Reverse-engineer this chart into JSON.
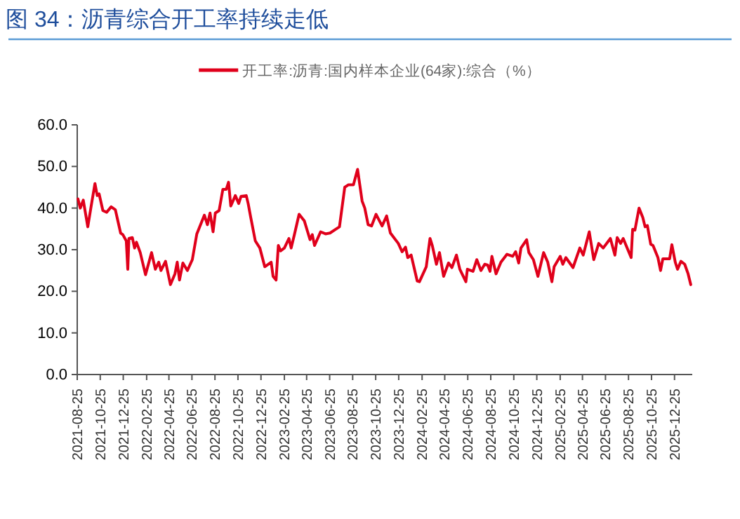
{
  "chart_data": {
    "type": "line",
    "title": "图 34：沥青综合开工率持续走低",
    "legend": "top",
    "ylim": [
      0,
      60
    ],
    "yticks": [
      {
        "value": 0,
        "label": "0.0"
      },
      {
        "value": 10,
        "label": "10.0"
      },
      {
        "value": 20,
        "label": "20.0"
      },
      {
        "value": 30,
        "label": "30.0"
      },
      {
        "value": 40,
        "label": "40.0"
      },
      {
        "value": 50,
        "label": "50.0"
      },
      {
        "value": 60,
        "label": "60.0"
      }
    ],
    "xlim": [
      "2021-08-25",
      "2026-02-10"
    ],
    "xticks": [
      "2021-08-25",
      "2021-10-25",
      "2021-12-25",
      "2022-02-25",
      "2022-04-25",
      "2022-06-25",
      "2022-08-25",
      "2022-10-25",
      "2022-12-25",
      "2023-02-25",
      "2023-04-25",
      "2023-06-25",
      "2023-08-25",
      "2023-10-25",
      "2023-12-25",
      "2024-02-25",
      "2024-04-25",
      "2024-06-25",
      "2024-08-25",
      "2024-10-25",
      "2024-12-25",
      "2025-02-25",
      "2025-04-25",
      "2025-06-25",
      "2025-08-25",
      "2025-10-25",
      "2025-12-25"
    ],
    "x": [
      "2021-08-27",
      "2021-09-02",
      "2021-09-10",
      "2021-09-22",
      "2021-10-01",
      "2021-10-11",
      "2021-10-17",
      "2021-10-22",
      "2021-11-01",
      "2021-11-11",
      "2021-11-23",
      "2021-12-04",
      "2021-12-18",
      "2021-12-24",
      "2022-01-02",
      "2022-01-06",
      "2022-01-09",
      "2022-01-18",
      "2022-01-24",
      "2022-01-29",
      "2022-02-08",
      "2022-02-22",
      "2022-03-10",
      "2022-03-20",
      "2022-03-29",
      "2022-04-04",
      "2022-04-16",
      "2022-04-29",
      "2022-05-11",
      "2022-05-17",
      "2022-05-23",
      "2022-06-01",
      "2022-06-13",
      "2022-06-26",
      "2022-07-08",
      "2022-07-28",
      "2022-08-05",
      "2022-08-12",
      "2022-08-20",
      "2022-08-26",
      "2022-09-05",
      "2022-09-15",
      "2022-09-24",
      "2022-09-30",
      "2022-10-06",
      "2022-10-18",
      "2022-10-27",
      "2022-11-02",
      "2022-11-16",
      "2022-11-21",
      "2022-11-28",
      "2022-12-10",
      "2022-12-22",
      "2023-01-04",
      "2023-01-21",
      "2023-01-26",
      "2023-02-03",
      "2023-02-09",
      "2023-02-15",
      "2023-02-25",
      "2023-03-09",
      "2023-03-15",
      "2023-03-24",
      "2023-04-05",
      "2023-04-19",
      "2023-05-04",
      "2023-05-10",
      "2023-05-16",
      "2023-06-01",
      "2023-06-14",
      "2023-06-26",
      "2023-07-11",
      "2023-07-21",
      "2023-08-04",
      "2023-08-14",
      "2023-08-27",
      "2023-09-07",
      "2023-09-19",
      "2023-09-26",
      "2023-10-05",
      "2023-10-14",
      "2023-10-26",
      "2023-11-11",
      "2023-11-23",
      "2023-12-03",
      "2023-12-24",
      "2024-01-03",
      "2024-01-12",
      "2024-01-18",
      "2024-01-27",
      "2024-02-12",
      "2024-02-18",
      "2024-03-07",
      "2024-03-17",
      "2024-03-23",
      "2024-04-03",
      "2024-04-11",
      "2024-04-22",
      "2024-05-05",
      "2024-05-14",
      "2024-05-26",
      "2024-06-04",
      "2024-06-20",
      "2024-06-24",
      "2024-07-09",
      "2024-07-19",
      "2024-07-30",
      "2024-08-09",
      "2024-08-17",
      "2024-08-23",
      "2024-08-28",
      "2024-09-08",
      "2024-09-21",
      "2024-10-07",
      "2024-10-22",
      "2024-10-30",
      "2024-11-07",
      "2024-11-13",
      "2024-11-28",
      "2024-12-04",
      "2024-12-16",
      "2024-12-28",
      "2025-01-12",
      "2025-01-23",
      "2025-02-03",
      "2025-02-09",
      "2025-02-25",
      "2025-03-04",
      "2025-03-12",
      "2025-03-31",
      "2025-04-18",
      "2025-04-27",
      "2025-05-13",
      "2025-05-25",
      "2025-06-07",
      "2025-06-19",
      "2025-07-08",
      "2025-07-20",
      "2025-07-26",
      "2025-08-04",
      "2025-08-11",
      "2025-09-01",
      "2025-09-05",
      "2025-09-11",
      "2025-09-22",
      "2025-10-02",
      "2025-10-08",
      "2025-10-14",
      "2025-10-23",
      "2025-10-29",
      "2025-11-11",
      "2025-11-18",
      "2025-11-24",
      "2025-12-12",
      "2025-12-18",
      "2025-12-27",
      "2026-01-02",
      "2026-01-11",
      "2026-01-21",
      "2026-01-30",
      "2026-02-06"
    ],
    "series": [
      {
        "name": "开工率:沥青:国内样本企业(64家):综合（%）",
        "color": "#e0001b",
        "values": [
          42.2,
          40,
          41.9,
          35.5,
          40.5,
          45.9,
          43,
          43.4,
          39.4,
          39,
          40.3,
          39.6,
          34,
          33.6,
          32.1,
          25.3,
          32.7,
          32.9,
          30.4,
          31.8,
          29.3,
          24,
          29.3,
          25.3,
          27,
          25,
          27.2,
          21.6,
          24.2,
          27,
          22.7,
          26.8,
          25,
          27.6,
          33.8,
          38.3,
          36,
          38.8,
          34.3,
          38.8,
          39.4,
          44.5,
          44.5,
          46.2,
          40.5,
          43,
          41.1,
          42.8,
          43,
          41.1,
          37.7,
          32.1,
          30.4,
          25.9,
          27,
          23.6,
          22.7,
          31,
          29.7,
          30.4,
          32.7,
          30.4,
          33.8,
          38.5,
          36.9,
          32.4,
          33.6,
          31,
          34.3,
          33.8,
          34,
          34.9,
          35.5,
          45,
          45.6,
          45.6,
          49.3,
          41.7,
          40,
          36,
          35.7,
          38.5,
          35.7,
          38.1,
          34,
          31.5,
          29.5,
          30.6,
          28.1,
          28.7,
          22.5,
          22.3,
          25.9,
          32.7,
          31,
          26.5,
          29.3,
          23.6,
          26.8,
          25.7,
          28.7,
          25.3,
          22.3,
          25.3,
          24.8,
          27.6,
          25,
          26.5,
          26.3,
          24.8,
          28.4,
          24.2,
          27,
          28.9,
          28.4,
          29.5,
          26.8,
          30.4,
          32.4,
          29.3,
          27.6,
          23.6,
          29.3,
          27,
          22.3,
          25.9,
          28.4,
          26.5,
          28.1,
          25.7,
          30.4,
          28.7,
          34.3,
          27.6,
          31.5,
          30.4,
          32.7,
          28.7,
          32.9,
          31.5,
          32.7,
          28.1,
          34.9,
          34.7,
          40,
          37.7,
          35.5,
          35.8,
          31.3,
          31,
          28.1,
          25,
          27.8,
          27.8,
          31.2,
          27,
          25.3,
          27.2,
          26.5,
          24.2,
          21.6
        ]
      }
    ]
  }
}
